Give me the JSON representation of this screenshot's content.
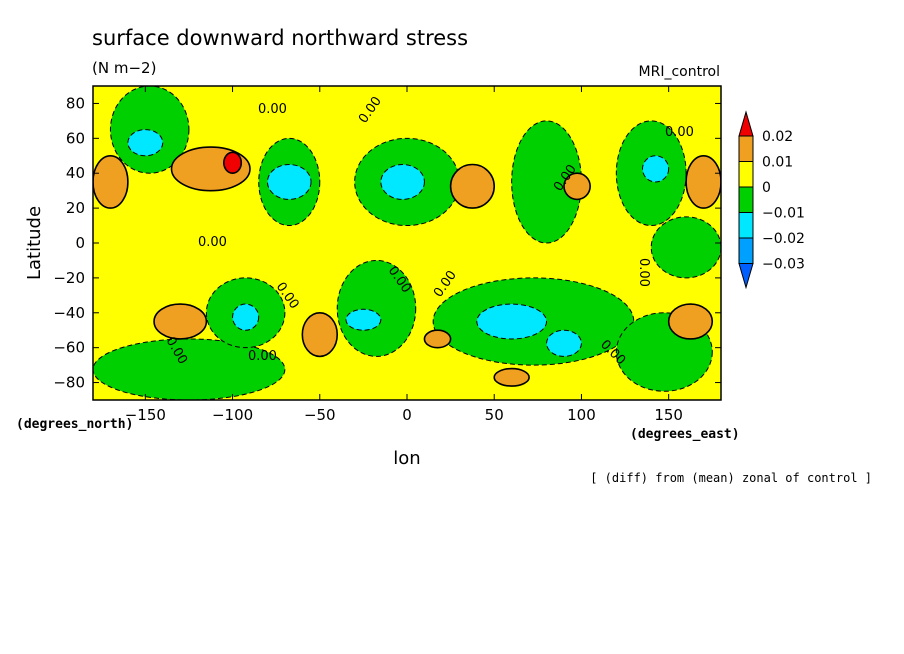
{
  "chart_data": {
    "type": "heatmap",
    "title": "surface downward northward stress",
    "units": "(N m−2)",
    "model_label": "MRI_control",
    "xlabel": "lon",
    "ylabel": "Latitude",
    "x_units": "(degrees_east)",
    "y_units": "(degrees_north)",
    "footnote": "[ (diff) from (mean) zonal of control ]",
    "xlim": [
      -180,
      180
    ],
    "ylim": [
      -90,
      90
    ],
    "x_ticks": [
      -150,
      -100,
      -50,
      0,
      50,
      100,
      150
    ],
    "y_ticks": [
      80,
      60,
      40,
      20,
      0,
      -20,
      -40,
      -60,
      -80
    ],
    "colorbar": {
      "levels": [
        "0.02",
        "0.01",
        "0",
        "−0.01",
        "−0.02",
        "−0.03"
      ],
      "colors": [
        "#f00000",
        "#f0a020",
        "#ffff00",
        "#00d000",
        "#00e8ff",
        "#00a0ff",
        "#0060ff"
      ]
    },
    "contour_labels": [
      "0.00",
      "0.00",
      "0.00",
      "0.00",
      "0.00",
      "0.00",
      "0.00",
      "0.00",
      "0.00",
      "0.00",
      "0.00",
      "0.00"
    ],
    "regions": [
      {
        "value": -0.01,
        "lon": [
          -170,
          -125
        ],
        "lat": [
          40,
          90
        ]
      },
      {
        "value": -0.02,
        "lon": [
          -160,
          -140
        ],
        "lat": [
          50,
          65
        ]
      },
      {
        "value": 0.01,
        "lon": [
          -180,
          -160
        ],
        "lat": [
          20,
          50
        ]
      },
      {
        "value": 0.01,
        "lon": [
          -135,
          -90
        ],
        "lat": [
          30,
          55
        ]
      },
      {
        "value": 0.02,
        "lon": [
          -105,
          -95
        ],
        "lat": [
          40,
          52
        ]
      },
      {
        "value": -0.01,
        "lon": [
          -85,
          -50
        ],
        "lat": [
          10,
          60
        ]
      },
      {
        "value": -0.02,
        "lon": [
          -80,
          -55
        ],
        "lat": [
          25,
          45
        ]
      },
      {
        "value": -0.01,
        "lon": [
          -30,
          30
        ],
        "lat": [
          10,
          60
        ]
      },
      {
        "value": -0.02,
        "lon": [
          -15,
          10
        ],
        "lat": [
          25,
          45
        ]
      },
      {
        "value": 0.01,
        "lon": [
          25,
          50
        ],
        "lat": [
          20,
          45
        ]
      },
      {
        "value": -0.01,
        "lon": [
          60,
          100
        ],
        "lat": [
          0,
          70
        ]
      },
      {
        "value": 0.01,
        "lon": [
          90,
          105
        ],
        "lat": [
          25,
          40
        ]
      },
      {
        "value": -0.01,
        "lon": [
          120,
          160
        ],
        "lat": [
          10,
          70
        ]
      },
      {
        "value": -0.02,
        "lon": [
          135,
          150
        ],
        "lat": [
          35,
          50
        ]
      },
      {
        "value": 0.01,
        "lon": [
          160,
          180
        ],
        "lat": [
          20,
          50
        ]
      },
      {
        "value": -0.01,
        "lon": [
          -180,
          -70
        ],
        "lat": [
          -90,
          -55
        ]
      },
      {
        "value": 0.01,
        "lon": [
          -145,
          -115
        ],
        "lat": [
          -55,
          -35
        ]
      },
      {
        "value": -0.01,
        "lon": [
          -115,
          -70
        ],
        "lat": [
          -60,
          -20
        ]
      },
      {
        "value": -0.02,
        "lon": [
          -100,
          -85
        ],
        "lat": [
          -50,
          -35
        ]
      },
      {
        "value": 0.01,
        "lon": [
          -60,
          -40
        ],
        "lat": [
          -65,
          -40
        ]
      },
      {
        "value": -0.01,
        "lon": [
          -40,
          5
        ],
        "lat": [
          -65,
          -10
        ]
      },
      {
        "value": -0.02,
        "lon": [
          -35,
          -15
        ],
        "lat": [
          -50,
          -38
        ]
      },
      {
        "value": -0.01,
        "lon": [
          15,
          130
        ],
        "lat": [
          -70,
          -20
        ]
      },
      {
        "value": -0.02,
        "lon": [
          40,
          80
        ],
        "lat": [
          -55,
          -35
        ]
      },
      {
        "value": -0.02,
        "lon": [
          80,
          100
        ],
        "lat": [
          -65,
          -50
        ]
      },
      {
        "value": 0.01,
        "lon": [
          50,
          70
        ],
        "lat": [
          -82,
          -72
        ]
      },
      {
        "value": 0.01,
        "lon": [
          10,
          25
        ],
        "lat": [
          -60,
          -50
        ]
      },
      {
        "value": -0.01,
        "lon": [
          120,
          175
        ],
        "lat": [
          -85,
          -40
        ]
      },
      {
        "value": 0.01,
        "lon": [
          150,
          175
        ],
        "lat": [
          -55,
          -35
        ]
      },
      {
        "value": -0.01,
        "lon": [
          140,
          180
        ],
        "lat": [
          -20,
          15
        ]
      }
    ]
  }
}
